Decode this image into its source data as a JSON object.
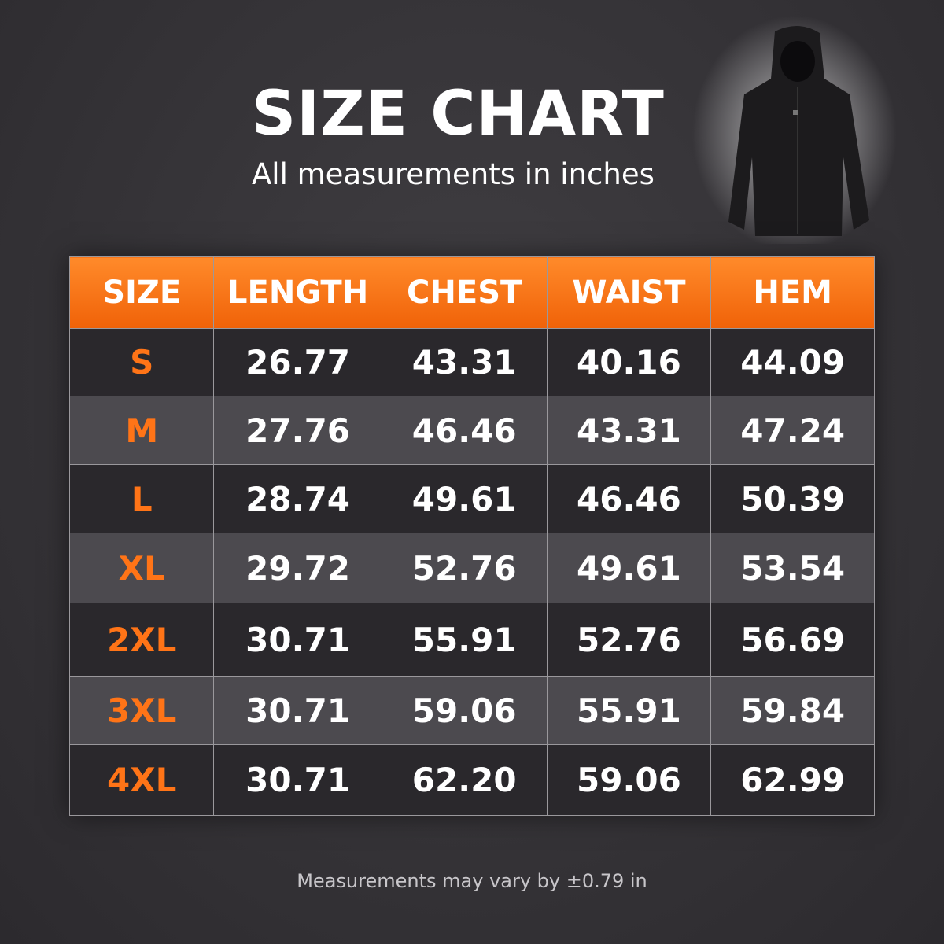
{
  "header": {
    "title": "SIZE CHART",
    "subtitle": "All measurements in inches"
  },
  "table": {
    "columns": [
      "SIZE",
      "LENGTH",
      "CHEST",
      "WAIST",
      "HEM"
    ],
    "rows": [
      [
        "S",
        "26.77",
        "43.31",
        "40.16",
        "44.09"
      ],
      [
        "M",
        "27.76",
        "46.46",
        "43.31",
        "47.24"
      ],
      [
        "L",
        "28.74",
        "49.61",
        "46.46",
        "50.39"
      ],
      [
        "XL",
        "29.72",
        "52.76",
        "49.61",
        "53.54"
      ],
      [
        "2XL",
        "30.71",
        "55.91",
        "52.76",
        "56.69"
      ],
      [
        "3XL",
        "30.71",
        "59.06",
        "55.91",
        "59.84"
      ],
      [
        "4XL",
        "30.71",
        "62.20",
        "59.06",
        "62.99"
      ]
    ]
  },
  "footer": {
    "note": "Measurements may vary by ±0.79 in"
  }
}
